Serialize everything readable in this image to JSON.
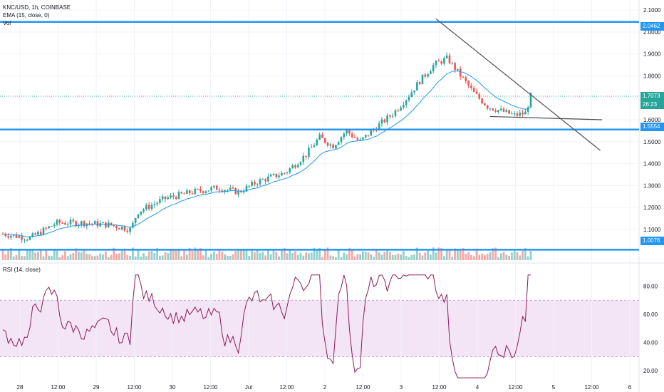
{
  "header": {
    "title": "KNC/USD, 1h, COINBASE",
    "ema": "EMA (15, close, 0)",
    "vol": "Vol",
    "rsi": "RSI (14, close)"
  },
  "colors": {
    "up": "#26a69a",
    "down": "#ef5350",
    "ema": "#2196f3",
    "hline": "#2196f3",
    "rsi": "#8e1b5a",
    "rsi_band": "#f3e5f5",
    "trend": "#4d4d4d"
  },
  "price_tags": {
    "resistance": "2.0462",
    "current": "1.7073",
    "countdown": "26:23",
    "support": "1.5554",
    "low": "1.0076"
  },
  "chart_data": [
    {
      "type": "candlestick",
      "title": "KNC/USD, 1h, COINBASE",
      "y_ticks": [
        "2.1000",
        "2.0000",
        "1.9000",
        "1.8000",
        "1.7000",
        "1.6000",
        "1.5000",
        "1.4000",
        "1.3000",
        "1.2000",
        "1.1000"
      ],
      "x_ticks": [
        "28",
        "12:00",
        "29",
        "12:00",
        "30",
        "12:00",
        "Jul",
        "12:00",
        "2",
        "12:00",
        "3",
        "12:00",
        "4",
        "12:00",
        "5",
        "12:00",
        "6"
      ],
      "ylim": [
        0.96,
        2.12
      ],
      "horizontal_lines": [
        2.0462,
        1.5554,
        1.0076
      ],
      "current_price": 1.7073,
      "candles_count": 196,
      "last_price": 1.7073,
      "series": [
        {
          "name": "EMA (15, close, 0)"
        }
      ],
      "trendlines": [
        {
          "from": [
            113,
            2.06
          ],
          "to": [
            212,
            1.46
          ]
        },
        {
          "from": [
            146,
            1.615
          ],
          "to": [
            213,
            1.6
          ]
        }
      ]
    },
    {
      "type": "bar",
      "title": "Vol"
    },
    {
      "type": "line",
      "title": "RSI (14, close)",
      "y_ticks": [
        "80.00",
        "60.00",
        "40.00",
        "20.00"
      ],
      "ylim": [
        10,
        95
      ],
      "band": [
        30,
        70
      ]
    }
  ]
}
